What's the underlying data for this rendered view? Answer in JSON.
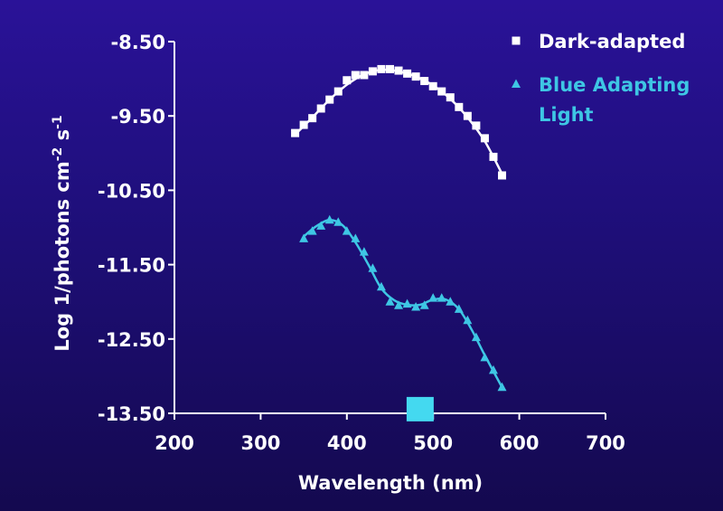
{
  "chart_data": {
    "type": "scatter",
    "xlabel": "Wavelength (nm)",
    "ylabel_parts": [
      "Log 1/photons cm",
      "-2",
      " s",
      "-1"
    ],
    "xlim": [
      200,
      700
    ],
    "ylim": [
      -13.5,
      -8.5
    ],
    "x_ticks": [
      200,
      300,
      400,
      500,
      600,
      700
    ],
    "x_tick_labels": [
      "200",
      "300",
      "400",
      "500",
      "600",
      "700"
    ],
    "y_ticks": [
      -8.5,
      -9.5,
      -10.5,
      -11.5,
      -12.5,
      -13.5
    ],
    "y_tick_labels": [
      "-8.50",
      "-9.50",
      "-10.50",
      "-11.50",
      "-12.50",
      "-13.50"
    ],
    "grid": false,
    "legend_position": "top-right",
    "series": [
      {
        "name": "Dark-adapted",
        "marker": "square",
        "color": "#ffffff",
        "points": [
          [
            340,
            -9.73
          ],
          [
            350,
            -9.62
          ],
          [
            360,
            -9.53
          ],
          [
            370,
            -9.4
          ],
          [
            380,
            -9.28
          ],
          [
            390,
            -9.17
          ],
          [
            400,
            -9.02
          ],
          [
            410,
            -8.95
          ],
          [
            420,
            -8.95
          ],
          [
            430,
            -8.9
          ],
          [
            440,
            -8.87
          ],
          [
            450,
            -8.87
          ],
          [
            460,
            -8.89
          ],
          [
            470,
            -8.93
          ],
          [
            480,
            -8.97
          ],
          [
            490,
            -9.03
          ],
          [
            500,
            -9.1
          ],
          [
            510,
            -9.17
          ],
          [
            520,
            -9.25
          ],
          [
            530,
            -9.38
          ],
          [
            540,
            -9.5
          ],
          [
            550,
            -9.63
          ],
          [
            560,
            -9.8
          ],
          [
            570,
            -10.05
          ],
          [
            580,
            -10.3
          ]
        ],
        "curve": [
          [
            340,
            -9.75
          ],
          [
            360,
            -9.52
          ],
          [
            380,
            -9.28
          ],
          [
            400,
            -9.08
          ],
          [
            420,
            -8.94
          ],
          [
            440,
            -8.88
          ],
          [
            460,
            -8.9
          ],
          [
            480,
            -8.97
          ],
          [
            500,
            -9.09
          ],
          [
            520,
            -9.27
          ],
          [
            540,
            -9.52
          ],
          [
            560,
            -9.84
          ],
          [
            580,
            -10.28
          ]
        ]
      },
      {
        "name_lines": [
          "Blue Adapting",
          "Light"
        ],
        "marker": "triangle",
        "color": "#3ec6e4",
        "points": [
          [
            350,
            -11.15
          ],
          [
            360,
            -11.05
          ],
          [
            370,
            -10.98
          ],
          [
            380,
            -10.9
          ],
          [
            390,
            -10.93
          ],
          [
            400,
            -11.05
          ],
          [
            410,
            -11.15
          ],
          [
            420,
            -11.33
          ],
          [
            430,
            -11.55
          ],
          [
            440,
            -11.8
          ],
          [
            450,
            -12.0
          ],
          [
            460,
            -12.05
          ],
          [
            470,
            -12.03
          ],
          [
            480,
            -12.07
          ],
          [
            490,
            -12.05
          ],
          [
            500,
            -11.95
          ],
          [
            510,
            -11.95
          ],
          [
            520,
            -12.0
          ],
          [
            530,
            -12.1
          ],
          [
            540,
            -12.25
          ],
          [
            550,
            -12.48
          ],
          [
            560,
            -12.75
          ],
          [
            570,
            -12.92
          ],
          [
            580,
            -13.15
          ]
        ],
        "curve": [
          [
            350,
            -11.12
          ],
          [
            365,
            -10.98
          ],
          [
            380,
            -10.9
          ],
          [
            395,
            -10.97
          ],
          [
            410,
            -11.2
          ],
          [
            425,
            -11.5
          ],
          [
            440,
            -11.82
          ],
          [
            455,
            -11.98
          ],
          [
            470,
            -12.04
          ],
          [
            485,
            -12.04
          ],
          [
            500,
            -11.97
          ],
          [
            515,
            -11.97
          ],
          [
            530,
            -12.1
          ],
          [
            545,
            -12.38
          ],
          [
            560,
            -12.72
          ],
          [
            580,
            -13.15
          ]
        ]
      }
    ],
    "marker_box": {
      "x": 485,
      "y": -13.45,
      "color": "#44d9f0"
    }
  }
}
